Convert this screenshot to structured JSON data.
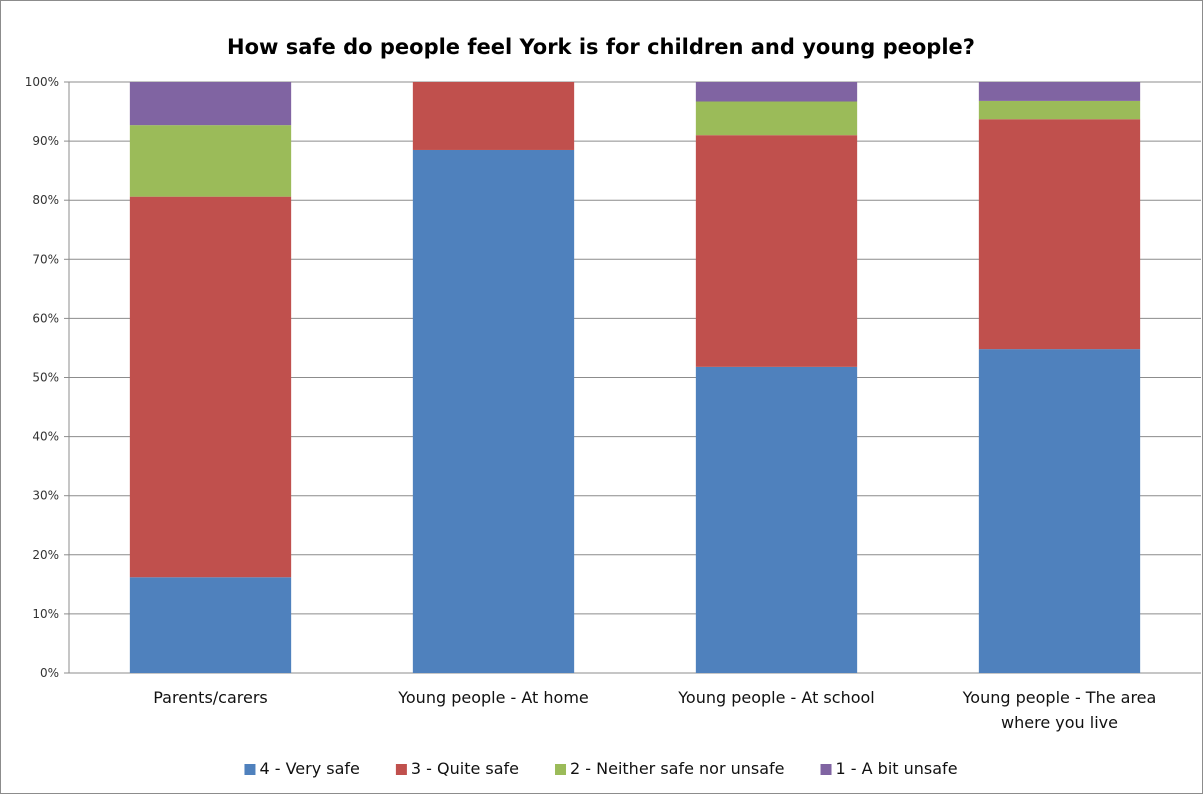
{
  "chart_data": {
    "type": "bar",
    "stacked": true,
    "percent_stacked": true,
    "title": "How safe do people feel York is for children and young people?",
    "xlabel": "",
    "ylabel": "",
    "ylim": [
      0,
      100
    ],
    "yticks": [
      "0%",
      "10%",
      "20%",
      "30%",
      "40%",
      "50%",
      "60%",
      "70%",
      "80%",
      "90%",
      "100%"
    ],
    "grid": true,
    "legend_position": "bottom",
    "categories": [
      [
        "Parents/carers"
      ],
      [
        "Young people - At home"
      ],
      [
        "Young people - At school"
      ],
      [
        "Young people - The area",
        "where you live"
      ]
    ],
    "series": [
      {
        "name": "4 - Very safe",
        "color": "#4F81BD",
        "values": [
          16.2,
          88.5,
          51.8,
          54.8
        ]
      },
      {
        "name": "3 - Quite safe",
        "color": "#C0504D",
        "values": [
          64.4,
          11.5,
          39.2,
          38.9
        ]
      },
      {
        "name": "2 - Neither safe nor unsafe",
        "color": "#9BBB59",
        "values": [
          12.1,
          0,
          5.7,
          3.1
        ]
      },
      {
        "name": "1 - A bit unsafe",
        "color": "#8064A2",
        "values": [
          7.3,
          0,
          3.3,
          3.2
        ]
      }
    ]
  }
}
